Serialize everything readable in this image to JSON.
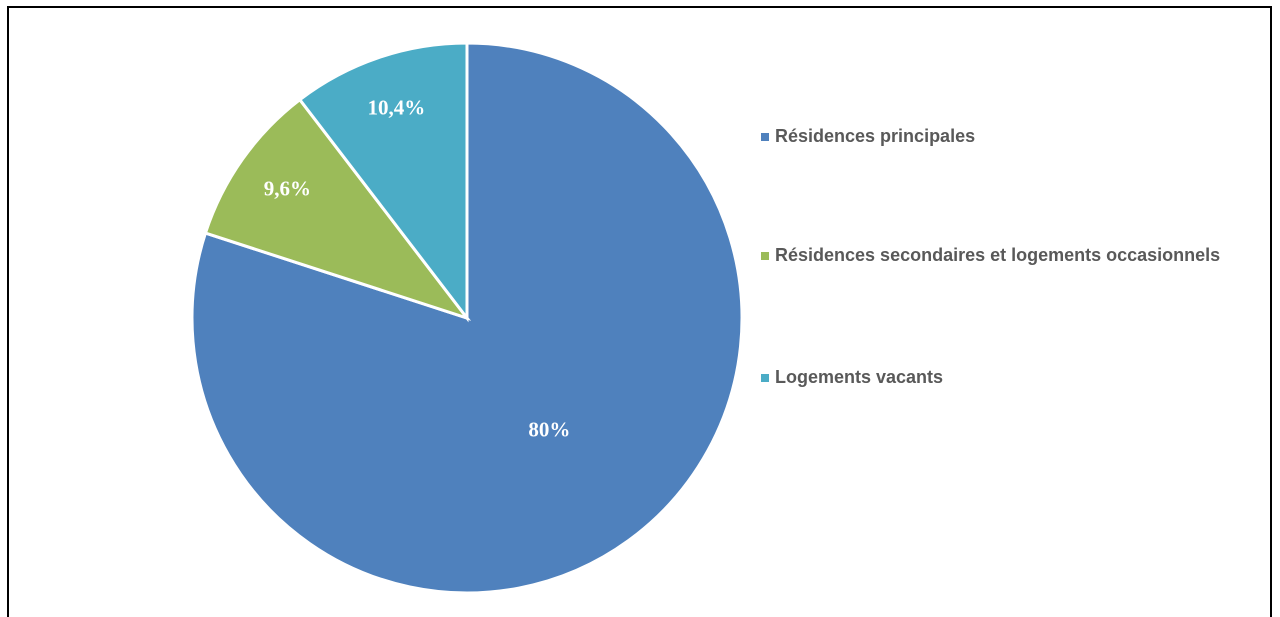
{
  "chart_data": {
    "type": "pie",
    "categories": [
      "Résidences principales",
      "Résidences secondaires et logements occasionnels",
      "Logements vacants"
    ],
    "values": [
      80,
      9.6,
      10.4
    ],
    "value_labels": [
      "80%",
      "9,6%",
      "10,4%"
    ],
    "colors": [
      "#4f81bd",
      "#9bbb59",
      "#4bacc6"
    ],
    "legend": "right"
  }
}
